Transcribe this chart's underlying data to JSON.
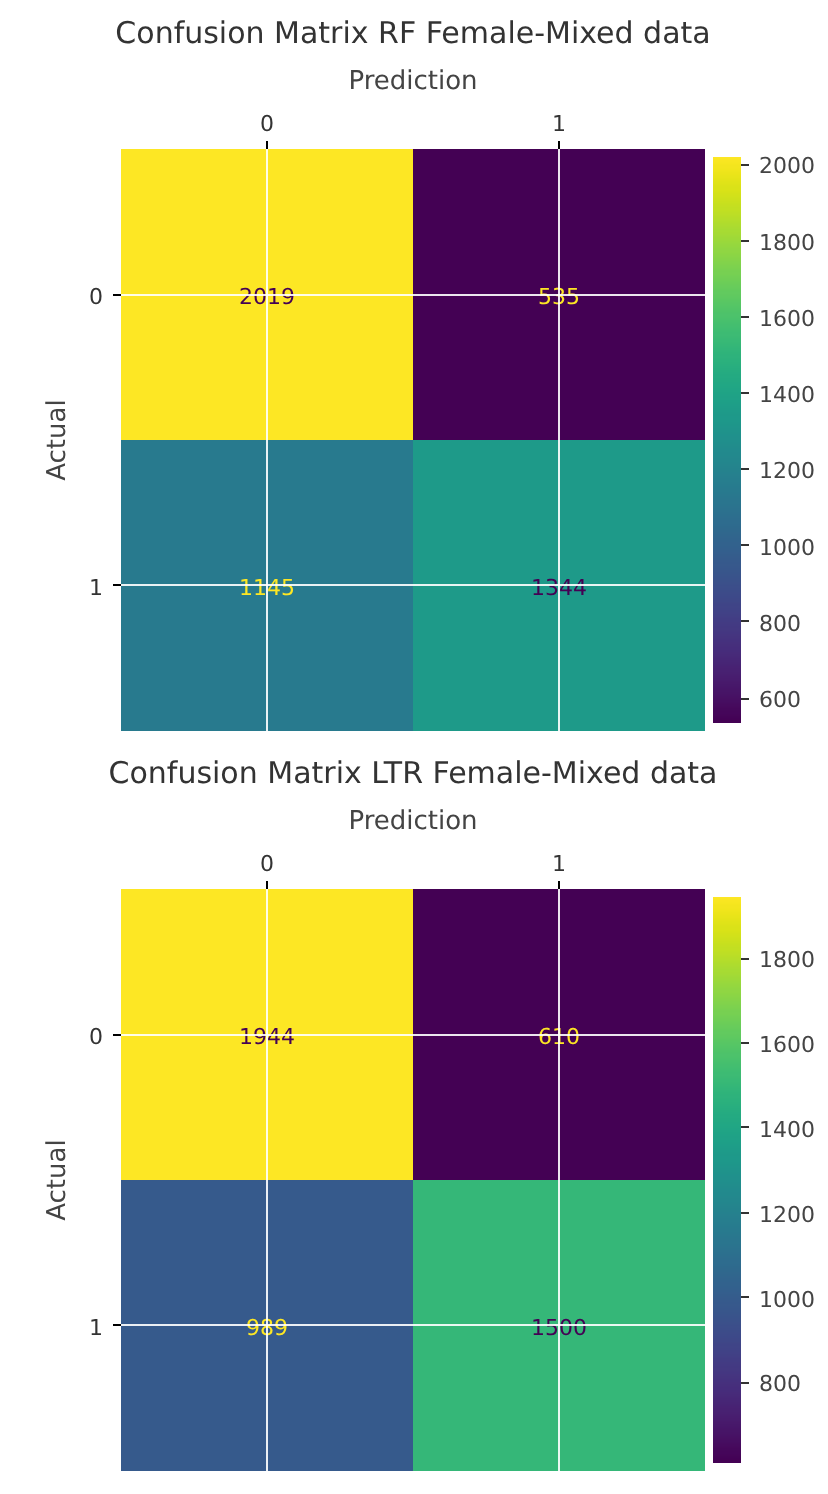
{
  "chart_data": [
    {
      "type": "heatmap",
      "title": "Confusion Matrix RF Female-Mixed data",
      "xlabel": "Prediction",
      "ylabel": "Actual",
      "categories": [
        "0",
        "1"
      ],
      "y_categories": [
        "0",
        "1"
      ],
      "cells": [
        [
          2019,
          535
        ],
        [
          1145,
          1344
        ]
      ],
      "clim": [
        535,
        2019
      ],
      "cticks": [
        600,
        800,
        1000,
        1200,
        1400,
        1600,
        1800,
        2000
      ],
      "data_labels": true,
      "grid": true
    },
    {
      "type": "heatmap",
      "title": "Confusion Matrix LTR Female-Mixed data",
      "xlabel": "Prediction",
      "ylabel": "Actual",
      "categories": [
        "0",
        "1"
      ],
      "y_categories": [
        "0",
        "1"
      ],
      "cells": [
        [
          1944,
          610
        ],
        [
          989,
          1500
        ]
      ],
      "clim": [
        610,
        1944
      ],
      "cticks": [
        800,
        1000,
        1200,
        1400,
        1600,
        1800
      ],
      "data_labels": true,
      "grid": true
    }
  ]
}
